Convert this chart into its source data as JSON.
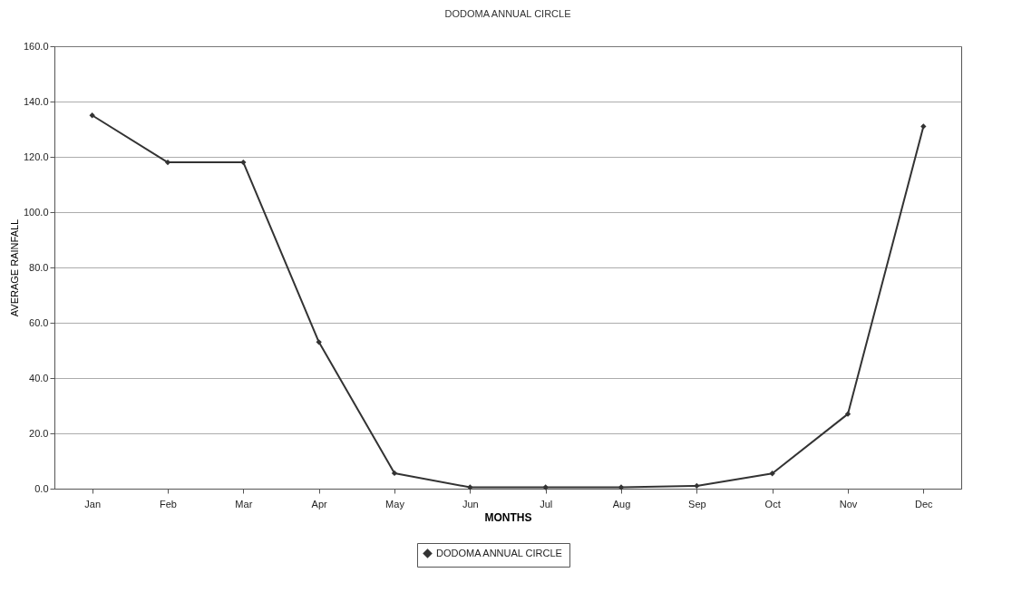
{
  "chart_data": {
    "type": "line",
    "title": "DODOMA ANNUAL CIRCLE",
    "xlabel": "MONTHS",
    "ylabel": "AVERAGE RAINFALL",
    "categories": [
      "Jan",
      "Feb",
      "Mar",
      "Apr",
      "May",
      "Jun",
      "Jul",
      "Aug",
      "Sep",
      "Oct",
      "Nov",
      "Dec"
    ],
    "series": [
      {
        "name": "DODOMA ANNUAL CIRCLE",
        "color": "#333333",
        "values": [
          135,
          118,
          118,
          53,
          5.6,
          0.5,
          0.5,
          0.5,
          1,
          5.5,
          27,
          131
        ]
      }
    ],
    "ylim": [
      0,
      160
    ],
    "yticks": [
      {
        "value": 0,
        "label": "0.0"
      },
      {
        "value": 20,
        "label": "20.0"
      },
      {
        "value": 40,
        "label": "40.0"
      },
      {
        "value": 60,
        "label": "60.0"
      },
      {
        "value": 80,
        "label": "80.0"
      },
      {
        "value": 100,
        "label": "100.0"
      },
      {
        "value": 120,
        "label": "120.0"
      },
      {
        "value": 140,
        "label": "140.0"
      },
      {
        "value": 160,
        "label": "160.0"
      }
    ],
    "grid": "y",
    "legend": "bottom",
    "marker": "diamond",
    "line_style": "solid"
  }
}
